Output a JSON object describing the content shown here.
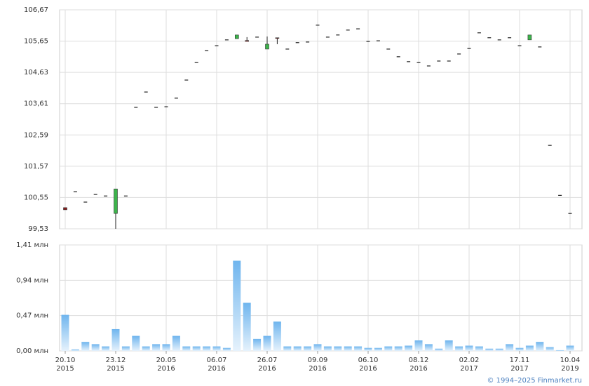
{
  "chart_data": [
    {
      "type": "candlestick",
      "ylim": [
        99.53,
        106.67
      ],
      "yticks": [
        {
          "value": 99.53,
          "label": "99,53"
        },
        {
          "value": 100.55,
          "label": "100,55"
        },
        {
          "value": 101.57,
          "label": "101,57"
        },
        {
          "value": 102.59,
          "label": "102,59"
        },
        {
          "value": 103.61,
          "label": "103,61"
        },
        {
          "value": 104.63,
          "label": "104,63"
        },
        {
          "value": 105.65,
          "label": "105,65"
        },
        {
          "value": 106.67,
          "label": "106,67"
        }
      ],
      "grid": true,
      "up_color": "#3cb44b",
      "down_color": "#8b1a1a",
      "flat_color": "#222222",
      "open": [
        100.22,
        100.74,
        100.4,
        100.65,
        100.6,
        100.03,
        100.6,
        103.49,
        103.99,
        103.49,
        103.51,
        103.79,
        104.38,
        104.95,
        105.34,
        105.5,
        105.69,
        105.73,
        105.67,
        105.78,
        105.39,
        105.76,
        105.39,
        105.6,
        105.62,
        106.17,
        105.78,
        105.85,
        106.01,
        106.05,
        105.64,
        105.66,
        105.39,
        105.14,
        104.98,
        104.95,
        104.84,
        105.0,
        105.0,
        105.23,
        105.41,
        105.92,
        105.76,
        105.69,
        105.76,
        105.5,
        105.69,
        105.46,
        102.25,
        100.62,
        100.03
      ],
      "high": [
        100.22,
        100.74,
        100.4,
        100.65,
        100.6,
        100.83,
        100.6,
        103.49,
        103.99,
        103.49,
        103.51,
        103.79,
        104.38,
        104.95,
        105.34,
        105.5,
        105.69,
        105.85,
        105.78,
        105.78,
        105.8,
        105.76,
        105.39,
        105.6,
        105.62,
        106.17,
        105.78,
        105.85,
        106.01,
        106.05,
        105.64,
        105.66,
        105.39,
        105.14,
        104.98,
        104.95,
        104.84,
        105.0,
        105.0,
        105.23,
        105.41,
        105.92,
        105.76,
        105.69,
        105.76,
        105.5,
        105.85,
        105.46,
        102.25,
        100.62,
        100.03
      ],
      "low": [
        100.15,
        100.74,
        100.4,
        100.65,
        100.6,
        99.53,
        100.6,
        103.49,
        103.99,
        103.49,
        103.51,
        103.79,
        104.38,
        104.95,
        105.34,
        105.5,
        105.69,
        105.73,
        105.64,
        105.78,
        105.39,
        105.55,
        105.39,
        105.6,
        105.62,
        106.17,
        105.78,
        105.85,
        106.01,
        106.05,
        105.64,
        105.66,
        105.39,
        105.14,
        104.98,
        104.95,
        104.84,
        105.0,
        105.0,
        105.23,
        105.41,
        105.92,
        105.76,
        105.69,
        105.76,
        105.5,
        105.69,
        105.46,
        102.25,
        100.62,
        100.03
      ],
      "close": [
        100.15,
        100.74,
        100.4,
        100.65,
        100.6,
        100.83,
        100.6,
        103.49,
        103.99,
        103.49,
        103.51,
        103.79,
        104.38,
        104.95,
        105.34,
        105.5,
        105.69,
        105.85,
        105.64,
        105.78,
        105.55,
        105.74,
        105.39,
        105.6,
        105.62,
        106.17,
        105.78,
        105.85,
        106.01,
        106.05,
        105.64,
        105.66,
        105.39,
        105.14,
        104.98,
        104.95,
        104.84,
        105.0,
        105.0,
        105.23,
        105.41,
        105.92,
        105.76,
        105.69,
        105.76,
        105.5,
        105.85,
        105.46,
        102.25,
        100.62,
        100.03
      ]
    },
    {
      "type": "bar",
      "categories": [
        "20.10\n2015",
        null,
        null,
        null,
        null,
        "23.12\n2015",
        null,
        null,
        null,
        null,
        "20.05\n2016",
        null,
        null,
        null,
        null,
        "06.07\n2016",
        null,
        null,
        null,
        null,
        "26.07\n2016",
        null,
        null,
        null,
        null,
        "09.09\n2016",
        null,
        null,
        null,
        null,
        "06.10\n2016",
        null,
        null,
        null,
        null,
        "08.12\n2016",
        null,
        null,
        null,
        null,
        "02.02\n2017",
        null,
        null,
        null,
        null,
        "17.11\n2017",
        null,
        null,
        null,
        null,
        "10.04\n2019"
      ],
      "values": [
        0.48,
        0.02,
        0.12,
        0.09,
        0.06,
        0.29,
        0.06,
        0.2,
        0.06,
        0.09,
        0.09,
        0.2,
        0.06,
        0.06,
        0.06,
        0.06,
        0.04,
        1.2,
        0.64,
        0.16,
        0.2,
        0.39,
        0.06,
        0.06,
        0.06,
        0.09,
        0.06,
        0.06,
        0.06,
        0.06,
        0.04,
        0.04,
        0.06,
        0.06,
        0.07,
        0.14,
        0.09,
        0.03,
        0.14,
        0.06,
        0.07,
        0.06,
        0.03,
        0.03,
        0.09,
        0.04,
        0.07,
        0.12,
        0.05,
        0.01,
        0.07
      ],
      "color": "#6fb5ee",
      "ylim": [
        0,
        1.41
      ],
      "yticks": [
        {
          "value": 0,
          "label": "0,00 млн"
        },
        {
          "value": 0.47,
          "label": "0,47 млн"
        },
        {
          "value": 0.94,
          "label": "0,94 млн"
        },
        {
          "value": 1.41,
          "label": "1,41 млн"
        }
      ],
      "grid": true
    }
  ],
  "footer": "© 1994–2025 Finmarket.ru"
}
